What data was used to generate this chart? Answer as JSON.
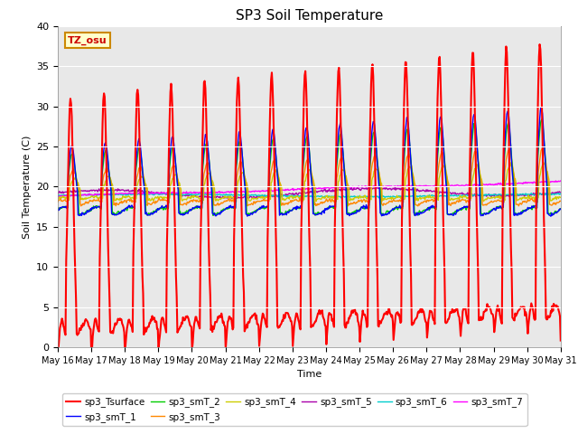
{
  "title": "SP3 Soil Temperature",
  "ylabel": "Soil Temperature (C)",
  "xlabel": "Time",
  "tz_label": "TZ_osu",
  "ylim": [
    0,
    40
  ],
  "background_color": "#e8e8e8",
  "series_colors": {
    "sp3_Tsurface": "#ff0000",
    "sp3_smT_1": "#0000ff",
    "sp3_smT_2": "#00cc00",
    "sp3_smT_3": "#ff8800",
    "sp3_smT_4": "#cccc00",
    "sp3_smT_5": "#aa00aa",
    "sp3_smT_6": "#00cccc",
    "sp3_smT_7": "#ff00ff"
  },
  "xtick_labels": [
    "May 16",
    "May 17",
    "May 18",
    "May 19",
    "May 20",
    "May 21",
    "May 22",
    "May 23",
    "May 24",
    "May 25",
    "May 26",
    "May 27",
    "May 28",
    "May 29",
    "May 30",
    "May 31"
  ],
  "ytick_labels": [
    "0",
    "5",
    "10",
    "15",
    "20",
    "25",
    "30",
    "35",
    "40"
  ],
  "num_points": 720
}
